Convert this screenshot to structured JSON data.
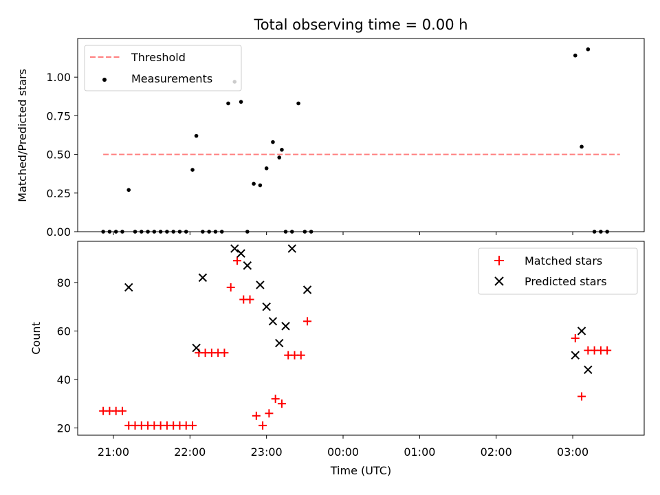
{
  "chart_data": [
    {
      "type": "scatter",
      "title": "Total observing time = 0.00 h",
      "xlabel": "",
      "ylabel": "Matched/Predicted stars",
      "xlim": [
        "20:32",
        "03:56"
      ],
      "ylim": [
        0,
        1.25
      ],
      "yticks": [
        "0.00",
        "0.25",
        "0.50",
        "0.75",
        "1.00"
      ],
      "legend_position": "top-left",
      "series": [
        {
          "name": "Threshold",
          "style": "dashed-line",
          "color": "#ff7f7f",
          "x": [
            "20:52",
            "03:37"
          ],
          "y": [
            0.5,
            0.5
          ]
        },
        {
          "name": "Measurements",
          "style": "dot",
          "color": "#000000",
          "x": [
            "20:52",
            "20:57",
            "21:02",
            "21:07",
            "21:12",
            "21:17",
            "21:22",
            "21:27",
            "21:32",
            "21:37",
            "21:42",
            "21:47",
            "21:52",
            "21:57",
            "22:02",
            "22:05",
            "22:10",
            "22:15",
            "22:20",
            "22:25",
            "22:30",
            "22:35",
            "22:40",
            "22:45",
            "22:50",
            "22:55",
            "23:00",
            "23:05",
            "23:10",
            "23:12",
            "23:15",
            "23:20",
            "23:25",
            "23:30",
            "23:35",
            "03:02",
            "03:07",
            "03:12",
            "03:17",
            "03:22",
            "03:27"
          ],
          "y": [
            0,
            0,
            0,
            0,
            0.27,
            0,
            0,
            0,
            0,
            0,
            0,
            0,
            0,
            0,
            0.4,
            0.62,
            0,
            0,
            0,
            0,
            0.83,
            0.97,
            0.84,
            0,
            0.31,
            0.3,
            0.41,
            0.58,
            0.48,
            0.53,
            0,
            0,
            0.83,
            0,
            0,
            1.14,
            0.55,
            1.18,
            0,
            0,
            0
          ]
        }
      ]
    },
    {
      "type": "scatter",
      "title": "",
      "xlabel": "Time (UTC)",
      "ylabel": "Count",
      "xlim": [
        "20:32",
        "03:56"
      ],
      "ylim": [
        17,
        97
      ],
      "xticks": [
        "21:00",
        "22:00",
        "23:00",
        "00:00",
        "01:00",
        "02:00",
        "03:00"
      ],
      "yticks": [
        "20",
        "40",
        "60",
        "80"
      ],
      "legend_position": "top-right",
      "series": [
        {
          "name": "Matched stars",
          "marker": "plus",
          "color": "#ff0000",
          "x": [
            "20:52",
            "20:57",
            "21:02",
            "21:07",
            "21:12",
            "21:17",
            "21:22",
            "21:27",
            "21:32",
            "21:37",
            "21:42",
            "21:47",
            "21:52",
            "21:57",
            "22:02",
            "22:07",
            "22:12",
            "22:17",
            "22:22",
            "22:27",
            "22:32",
            "22:37",
            "22:42",
            "22:47",
            "22:52",
            "22:57",
            "23:02",
            "23:07",
            "23:12",
            "23:17",
            "23:22",
            "23:27",
            "23:32",
            "03:02",
            "03:07",
            "03:12",
            "03:17",
            "03:22",
            "03:27"
          ],
          "y": [
            27,
            27,
            27,
            27,
            21,
            21,
            21,
            21,
            21,
            21,
            21,
            21,
            21,
            21,
            21,
            51,
            51,
            51,
            51,
            51,
            78,
            89,
            73,
            73,
            25,
            21,
            26,
            32,
            30,
            50,
            50,
            50,
            64,
            57,
            33,
            52,
            52,
            52,
            52
          ]
        },
        {
          "name": "Predicted stars",
          "marker": "x",
          "color": "#000000",
          "x": [
            "21:12",
            "22:05",
            "22:10",
            "22:35",
            "22:40",
            "22:45",
            "22:55",
            "23:00",
            "23:05",
            "23:10",
            "23:15",
            "23:20",
            "23:32",
            "03:02",
            "03:07",
            "03:12"
          ],
          "y": [
            78,
            53,
            82,
            94,
            92,
            87,
            79,
            70,
            64,
            55,
            62,
            94,
            77,
            50,
            60,
            44
          ]
        }
      ]
    }
  ]
}
